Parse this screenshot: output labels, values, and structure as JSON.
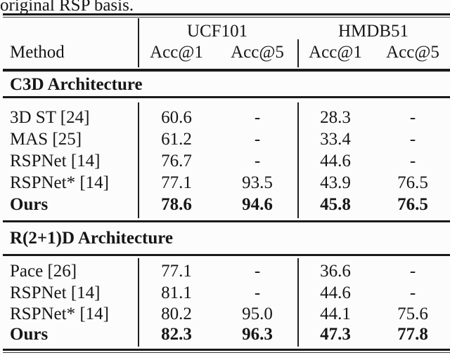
{
  "caption_tail": "original RSP basis.",
  "table": {
    "col_groups": {
      "group1": "UCF101",
      "group2": "HMDB51"
    },
    "method_header": "Method",
    "sub_headers": [
      "Acc@1",
      "Acc@5",
      "Acc@1",
      "Acc@5"
    ],
    "sections": [
      {
        "title": "C3D Architecture",
        "rows": [
          {
            "method": "3D ST [24]",
            "bold": false,
            "values": [
              "60.6",
              "-",
              "28.3",
              "-"
            ]
          },
          {
            "method": "MAS [25]",
            "bold": false,
            "values": [
              "61.2",
              "-",
              "33.4",
              "-"
            ]
          },
          {
            "method": "RSPNet [14]",
            "bold": false,
            "values": [
              "76.7",
              "-",
              "44.6",
              "-"
            ]
          },
          {
            "method": "RSPNet* [14]",
            "bold": false,
            "values": [
              "77.1",
              "93.5",
              "43.9",
              "76.5"
            ]
          },
          {
            "method": "Ours",
            "bold": true,
            "values": [
              "78.6",
              "94.6",
              "45.8",
              "76.5"
            ]
          }
        ]
      },
      {
        "title": "R(2+1)D Architecture",
        "rows": [
          {
            "method": "Pace [26]",
            "bold": false,
            "values": [
              "77.1",
              "-",
              "36.6",
              "-"
            ]
          },
          {
            "method": "RSPNet [14]",
            "bold": false,
            "values": [
              "81.1",
              "-",
              "44.6",
              "-"
            ]
          },
          {
            "method": "RSPNet* [14]",
            "bold": false,
            "values": [
              "80.2",
              "95.0",
              "44.1",
              "75.6"
            ]
          },
          {
            "method": "Ours",
            "bold": true,
            "values": [
              "82.3",
              "96.3",
              "47.3",
              "77.8"
            ]
          }
        ]
      }
    ],
    "colors": {
      "text": "#161616",
      "rule": "#1a1a1a",
      "background": "#fcfcfc"
    }
  }
}
